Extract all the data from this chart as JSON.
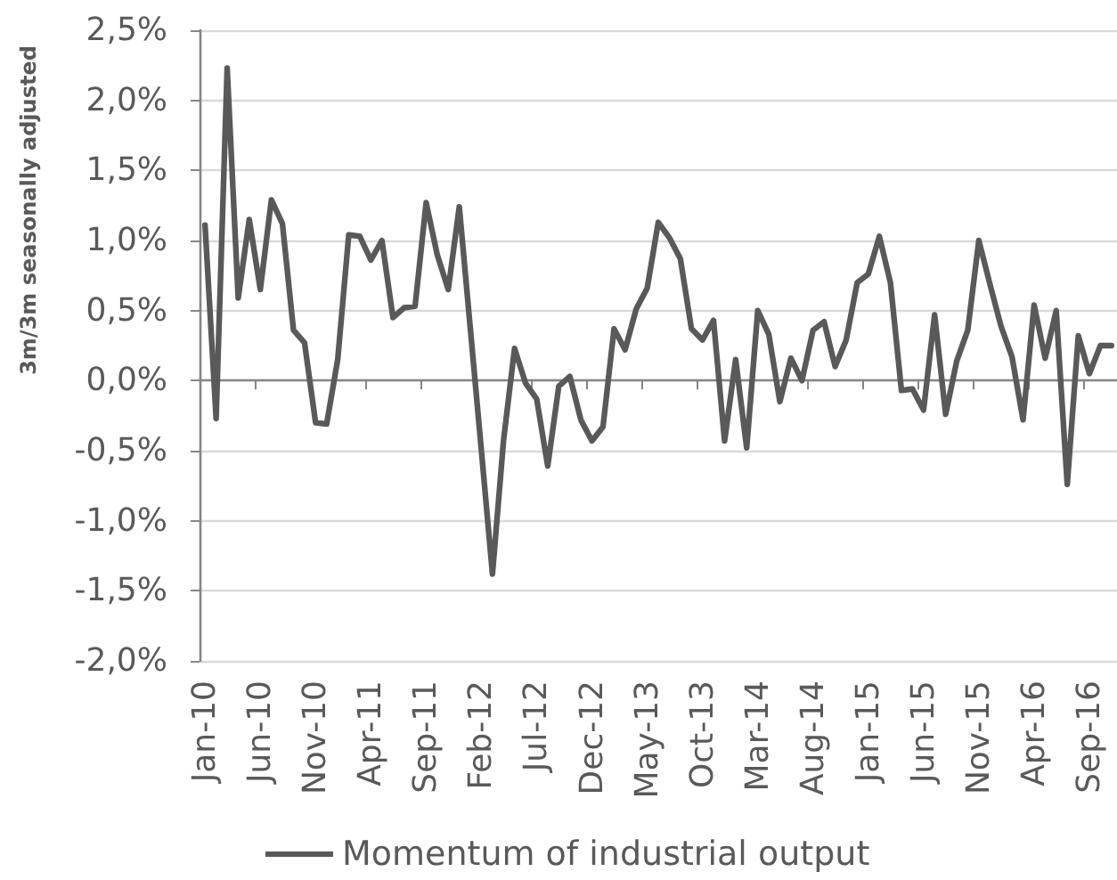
{
  "chart_data": {
    "type": "line",
    "ylabel": "3m/3m seasonally adjusted",
    "categories": [
      "Jan-10",
      null,
      null,
      null,
      null,
      "Jun-10",
      null,
      null,
      null,
      null,
      "Nov-10",
      null,
      null,
      null,
      null,
      "Apr-11",
      null,
      null,
      null,
      null,
      "Sep-11",
      null,
      null,
      null,
      null,
      "Feb-12",
      null,
      null,
      null,
      null,
      "Jul-12",
      null,
      null,
      null,
      null,
      "Dec-12",
      null,
      null,
      null,
      null,
      "May-13",
      null,
      null,
      null,
      null,
      "Oct-13",
      null,
      null,
      null,
      null,
      "Mar-14",
      null,
      null,
      null,
      null,
      "Aug-14",
      null,
      null,
      null,
      null,
      "Jan-15",
      null,
      null,
      null,
      null,
      "Jun-15",
      null,
      null,
      null,
      null,
      "Nov-15",
      null,
      null,
      null,
      null,
      "Apr-16",
      null,
      null,
      null,
      null,
      "Sep-16",
      null,
      null
    ],
    "series": [
      {
        "name": "Momentum of industrial output",
        "color": "#595959",
        "values": [
          1.11,
          -0.27,
          2.23,
          0.59,
          1.15,
          0.65,
          1.29,
          1.12,
          0.36,
          0.27,
          -0.3,
          -0.31,
          0.15,
          1.04,
          1.03,
          0.86,
          1.0,
          0.45,
          0.52,
          0.53,
          1.27,
          0.9,
          0.65,
          1.24,
          0.37,
          -0.5,
          -1.38,
          -0.43,
          0.23,
          -0.02,
          -0.13,
          -0.61,
          -0.04,
          0.03,
          -0.28,
          -0.43,
          -0.33,
          0.37,
          0.22,
          0.51,
          0.66,
          1.13,
          1.02,
          0.87,
          0.37,
          0.29,
          0.43,
          -0.43,
          0.15,
          -0.48,
          0.5,
          0.33,
          -0.15,
          0.16,
          0.0,
          0.36,
          0.42,
          0.1,
          0.29,
          0.7,
          0.76,
          1.03,
          0.7,
          -0.07,
          -0.06,
          -0.21,
          0.47,
          -0.24,
          0.14,
          0.36,
          1.0,
          0.69,
          0.39,
          0.17,
          -0.28,
          0.54,
          0.16,
          0.5,
          -0.74,
          0.32,
          0.05,
          0.25,
          0.25
        ]
      }
    ],
    "ylim": [
      -2,
      2.5
    ],
    "yticks": [
      {
        "value": -2,
        "label": "-2,0%"
      },
      {
        "value": -1.5,
        "label": "-1,5%"
      },
      {
        "value": -1,
        "label": "-1,0%"
      },
      {
        "value": -0.5,
        "label": "-0,5%"
      },
      {
        "value": 0,
        "label": "0,0%"
      },
      {
        "value": 0.5,
        "label": "0,5%"
      },
      {
        "value": 1,
        "label": "1,0%"
      },
      {
        "value": 1.5,
        "label": "1,5%"
      },
      {
        "value": 2,
        "label": "2,0%"
      },
      {
        "value": 2.5,
        "label": "2,5%"
      }
    ],
    "grid": "y",
    "legend": "bottom"
  }
}
